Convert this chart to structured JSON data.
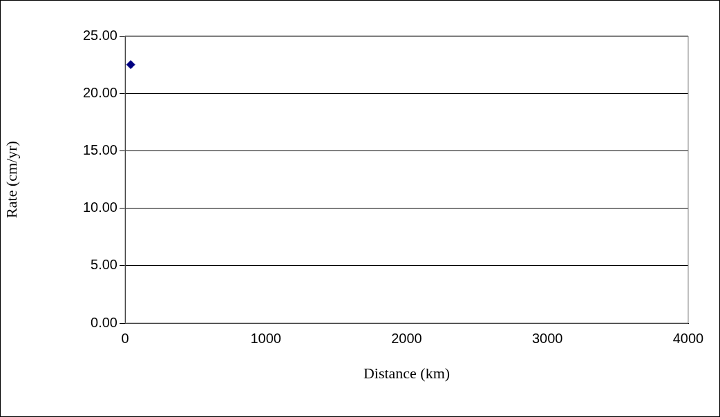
{
  "chart_data": {
    "type": "scatter",
    "xlabel": "Distance (km)",
    "ylabel": "Rate (cm/yr)",
    "x": [
      40
    ],
    "series": [
      {
        "color": "#000080",
        "values": [
          22.5
        ]
      }
    ],
    "xlim": [
      0,
      4000
    ],
    "xticks": [
      0,
      1000,
      2000,
      3000,
      4000
    ],
    "ylim": [
      0,
      25
    ],
    "yticks": [
      {
        "value": 0,
        "label": "0.00"
      },
      {
        "value": 5,
        "label": "5.00"
      },
      {
        "value": 10,
        "label": "10.00"
      },
      {
        "value": 15,
        "label": "15.00"
      },
      {
        "value": 20,
        "label": "20.00"
      },
      {
        "value": 25,
        "label": "25.00"
      }
    ],
    "grid": "y",
    "legend": false,
    "marker": "diamond"
  }
}
